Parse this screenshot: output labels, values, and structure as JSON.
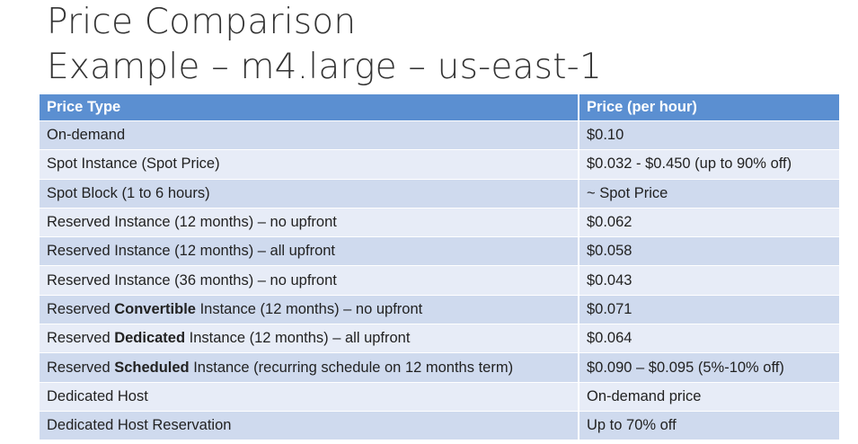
{
  "title": {
    "line1": "Price Comparison",
    "line2": "Example – m4.large – us-east-1"
  },
  "table": {
    "headers": {
      "price_type": "Price Type",
      "price_per_hour": "Price (per hour)"
    },
    "rows": [
      {
        "type": {
          "pre": "On-demand",
          "bold": "",
          "post": ""
        },
        "price": "$0.10"
      },
      {
        "type": {
          "pre": "Spot Instance (Spot Price)",
          "bold": "",
          "post": ""
        },
        "price": "$0.032 - $0.450 (up to 90% off)"
      },
      {
        "type": {
          "pre": "Spot Block (1 to 6 hours)",
          "bold": "",
          "post": ""
        },
        "price": "~ Spot Price"
      },
      {
        "type": {
          "pre": "Reserved Instance (12 months) – no upfront",
          "bold": "",
          "post": ""
        },
        "price": "$0.062"
      },
      {
        "type": {
          "pre": "Reserved Instance (12 months) – all upfront",
          "bold": "",
          "post": ""
        },
        "price": "$0.058"
      },
      {
        "type": {
          "pre": "Reserved Instance (36 months) – no upfront",
          "bold": "",
          "post": ""
        },
        "price": "$0.043"
      },
      {
        "type": {
          "pre": "Reserved ",
          "bold": "Convertible",
          "post": " Instance (12 months) – no upfront"
        },
        "price": "$0.071"
      },
      {
        "type": {
          "pre": "Reserved ",
          "bold": "Dedicated",
          "post": " Instance (12 months) – all upfront"
        },
        "price": "$0.064"
      },
      {
        "type": {
          "pre": "Reserved ",
          "bold": "Scheduled",
          "post": " Instance (recurring schedule on 12 months term)"
        },
        "price": "$0.090 – $0.095 (5%-10% off)"
      },
      {
        "type": {
          "pre": "Dedicated Host",
          "bold": "",
          "post": ""
        },
        "price": "On-demand price"
      },
      {
        "type": {
          "pre": "Dedicated Host Reservation",
          "bold": "",
          "post": ""
        },
        "price": "Up to 70% off"
      }
    ]
  },
  "colors": {
    "header_bg": "#5b8fd1",
    "row_dark": "#cfdaee",
    "row_light": "#e7ecf7"
  }
}
